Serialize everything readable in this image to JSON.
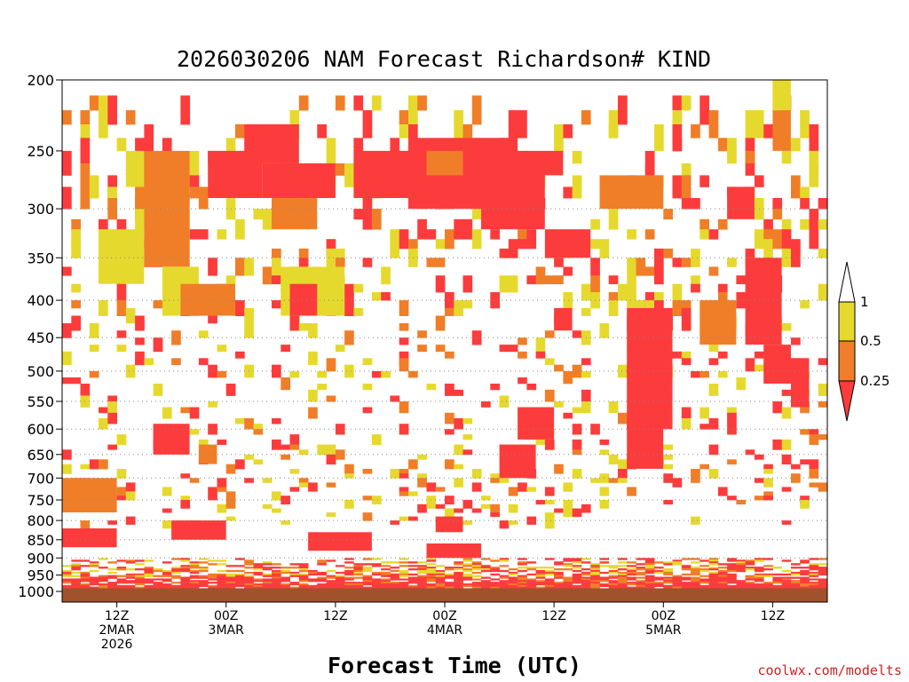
{
  "chart_data": {
    "type": "heatmap",
    "title": "2026030206 NAM Forecast Richardson# KIND",
    "xlabel": "Forecast Time (UTC)",
    "ylabel": "",
    "y_scale": "log-pressure (hPa, inverted)",
    "ylim": [
      1000,
      200
    ],
    "x_hours_range": [
      6,
      90
    ],
    "y_ticks": [
      200,
      250,
      300,
      350,
      400,
      450,
      500,
      550,
      600,
      650,
      700,
      750,
      800,
      850,
      900,
      950,
      1000
    ],
    "y_tick_labels": [
      "200",
      "250",
      "300",
      "350",
      "400",
      "450",
      "500",
      "550",
      "600",
      "650",
      "700",
      "750",
      "800",
      "850",
      "900",
      "950",
      "1000"
    ],
    "x_ticks": [
      {
        "hour": 12,
        "lines": [
          "12Z",
          "2MAR",
          "2026"
        ]
      },
      {
        "hour": 24,
        "lines": [
          "00Z",
          "3MAR"
        ]
      },
      {
        "hour": 36,
        "lines": [
          "12Z"
        ]
      },
      {
        "hour": 48,
        "lines": [
          "00Z",
          "4MAR"
        ]
      },
      {
        "hour": 60,
        "lines": [
          "12Z"
        ]
      },
      {
        "hour": 72,
        "lines": [
          "00Z",
          "5MAR"
        ]
      },
      {
        "hour": 84,
        "lines": [
          "12Z"
        ]
      }
    ],
    "grid": "dotted horizontal lines at 300-900 hPa",
    "legend": {
      "position": "right",
      "labels": [
        "1",
        "0.5",
        "0.25"
      ],
      "bins": [
        {
          "min": 0.5,
          "max": 1,
          "color": "#e6d92e"
        },
        {
          "min": 0.25,
          "max": 0.5,
          "color": "#f07e28"
        },
        {
          "min": null,
          "max": 0.25,
          "color": "#fc3c3c"
        }
      ]
    },
    "colors": {
      "low": "#fc3c3c",
      "mid": "#f07e28",
      "high": "#e6d92e",
      "ground": "#a0522d"
    },
    "ground_level_hpa": 990,
    "regions": [
      {
        "h": [
          14,
          20
        ],
        "p": [
          250,
          300
        ],
        "c": 2
      },
      {
        "h": [
          13,
          15
        ],
        "p": [
          250,
          280
        ],
        "c": 3
      },
      {
        "h": [
          10,
          15
        ],
        "p": [
          320,
          380
        ],
        "c": 3
      },
      {
        "h": [
          15,
          20
        ],
        "p": [
          300,
          360
        ],
        "c": 2
      },
      {
        "h": [
          17,
          21
        ],
        "p": [
          360,
          420
        ],
        "c": 3
      },
      {
        "h": [
          19,
          25
        ],
        "p": [
          380,
          420
        ],
        "c": 2
      },
      {
        "h": [
          22,
          28
        ],
        "p": [
          250,
          290
        ],
        "c": 1
      },
      {
        "h": [
          26,
          32
        ],
        "p": [
          230,
          260
        ],
        "c": 1
      },
      {
        "h": [
          28,
          36
        ],
        "p": [
          260,
          290
        ],
        "c": 1
      },
      {
        "h": [
          29,
          34
        ],
        "p": [
          290,
          320
        ],
        "c": 2
      },
      {
        "h": [
          30,
          37
        ],
        "p": [
          360,
          420
        ],
        "c": 3
      },
      {
        "h": [
          31,
          34
        ],
        "p": [
          380,
          420
        ],
        "c": 1
      },
      {
        "h": [
          38,
          45
        ],
        "p": [
          250,
          290
        ],
        "c": 1
      },
      {
        "h": [
          44,
          56
        ],
        "p": [
          240,
          300
        ],
        "c": 1
      },
      {
        "h": [
          46,
          50
        ],
        "p": [
          250,
          270
        ],
        "c": 2
      },
      {
        "h": [
          52,
          59
        ],
        "p": [
          260,
          320
        ],
        "c": 1
      },
      {
        "h": [
          55,
          61
        ],
        "p": [
          250,
          270
        ],
        "c": 1
      },
      {
        "h": [
          59,
          64
        ],
        "p": [
          320,
          350
        ],
        "c": 1
      },
      {
        "h": [
          60,
          62
        ],
        "p": [
          410,
          440
        ],
        "c": 1
      },
      {
        "h": [
          65,
          72
        ],
        "p": [
          270,
          300
        ],
        "c": 2
      },
      {
        "h": [
          68,
          73
        ],
        "p": [
          410,
          600
        ],
        "c": 1
      },
      {
        "h": [
          76,
          80
        ],
        "p": [
          400,
          460
        ],
        "c": 2
      },
      {
        "h": [
          79,
          82
        ],
        "p": [
          280,
          310
        ],
        "c": 1
      },
      {
        "h": [
          81,
          85
        ],
        "p": [
          350,
          460
        ],
        "c": 1
      },
      {
        "h": [
          83,
          86
        ],
        "p": [
          460,
          520
        ],
        "c": 1
      },
      {
        "h": [
          86,
          88
        ],
        "p": [
          480,
          560
        ],
        "c": 1
      },
      {
        "h": [
          84,
          86
        ],
        "p": [
          220,
          250
        ],
        "c": 2
      },
      {
        "h": [
          84,
          86
        ],
        "p": [
          200,
          220
        ],
        "c": 3
      },
      {
        "h": [
          16,
          20
        ],
        "p": [
          590,
          650
        ],
        "c": 1
      },
      {
        "h": [
          21,
          23
        ],
        "p": [
          630,
          670
        ],
        "c": 2
      },
      {
        "h": [
          54,
          58
        ],
        "p": [
          630,
          700
        ],
        "c": 1
      },
      {
        "h": [
          56,
          60
        ],
        "p": [
          560,
          620
        ],
        "c": 1
      },
      {
        "h": [
          68,
          72
        ],
        "p": [
          580,
          680
        ],
        "c": 1
      },
      {
        "h": [
          6,
          12
        ],
        "p": [
          700,
          780
        ],
        "c": 2
      },
      {
        "h": [
          6,
          12
        ],
        "p": [
          820,
          870
        ],
        "c": 1
      },
      {
        "h": [
          18,
          24
        ],
        "p": [
          800,
          850
        ],
        "c": 1
      },
      {
        "h": [
          33,
          40
        ],
        "p": [
          830,
          880
        ],
        "c": 1
      },
      {
        "h": [
          47,
          50
        ],
        "p": [
          790,
          830
        ],
        "c": 1
      },
      {
        "h": [
          46,
          52
        ],
        "p": [
          860,
          900
        ],
        "c": 1
      }
    ]
  },
  "legend": {
    "top_label": "1",
    "mid_label": "0.5",
    "low_label": "0.25"
  },
  "credit": "coolwx.com/modelts"
}
